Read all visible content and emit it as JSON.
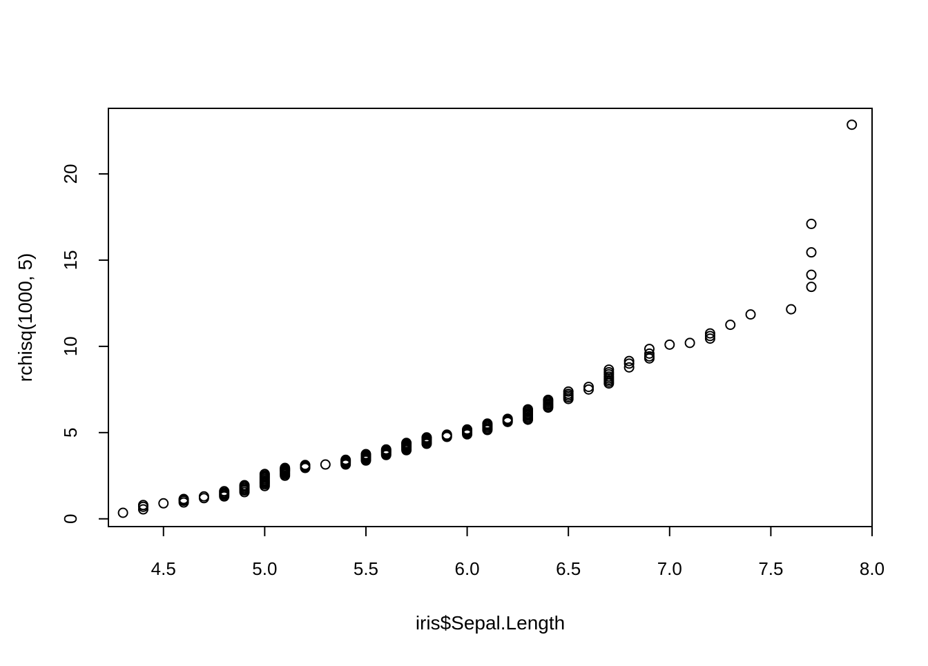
{
  "chart_data": {
    "type": "scatter",
    "title": "",
    "xlabel": "iris$Sepal.Length",
    "ylabel": "rchisq(1000, 5)",
    "xlim": [
      4.228,
      8.0
    ],
    "ylim": [
      -0.45,
      23.8
    ],
    "x_ticks": [
      4.5,
      5.0,
      5.5,
      6.0,
      6.5,
      7.0,
      7.5,
      8.0
    ],
    "x_tick_labels": [
      "4.5",
      "5.0",
      "5.5",
      "6.0",
      "6.5",
      "7.0",
      "7.5",
      "8.0"
    ],
    "y_ticks": [
      0,
      5,
      10,
      15,
      20
    ],
    "y_tick_labels": [
      "0",
      "5",
      "10",
      "15",
      "20"
    ],
    "grid": false,
    "legend": "none",
    "marker": "open-circle",
    "colors": {
      "points": "#000000",
      "axes": "#000000",
      "background": "#ffffff"
    },
    "series": [
      {
        "x": [
          4.3,
          4.4,
          4.4,
          4.4,
          4.5,
          4.6,
          4.6,
          4.6,
          4.6,
          4.7,
          4.7,
          4.8,
          4.8,
          4.8,
          4.8,
          4.8,
          4.9,
          4.9,
          4.9,
          4.9,
          4.9,
          4.9,
          5.0,
          5.0,
          5.0,
          5.0,
          5.0,
          5.0,
          5.0,
          5.0,
          5.0,
          5.0,
          5.1,
          5.1,
          5.1,
          5.1,
          5.1,
          5.1,
          5.1,
          5.1,
          5.1,
          5.2,
          5.2,
          5.2,
          5.2,
          5.3,
          5.4,
          5.4,
          5.4,
          5.4,
          5.4,
          5.4,
          5.5,
          5.5,
          5.5,
          5.5,
          5.5,
          5.5,
          5.5,
          5.6,
          5.6,
          5.6,
          5.6,
          5.6,
          5.6,
          5.7,
          5.7,
          5.7,
          5.7,
          5.7,
          5.7,
          5.7,
          5.7,
          5.8,
          5.8,
          5.8,
          5.8,
          5.8,
          5.8,
          5.8,
          5.9,
          5.9,
          5.9,
          6.0,
          6.0,
          6.0,
          6.0,
          6.0,
          6.0,
          6.1,
          6.1,
          6.1,
          6.1,
          6.1,
          6.1,
          6.2,
          6.2,
          6.2,
          6.2,
          6.3,
          6.3,
          6.3,
          6.3,
          6.3,
          6.3,
          6.3,
          6.3,
          6.3,
          6.4,
          6.4,
          6.4,
          6.4,
          6.4,
          6.4,
          6.4,
          6.5,
          6.5,
          6.5,
          6.5,
          6.5,
          6.6,
          6.6,
          6.7,
          6.7,
          6.7,
          6.7,
          6.7,
          6.7,
          6.7,
          6.7,
          6.8,
          6.8,
          6.8,
          6.9,
          6.9,
          6.9,
          6.9,
          7.0,
          7.1,
          7.2,
          7.2,
          7.2,
          7.3,
          7.4,
          7.6,
          7.7,
          7.7,
          7.7,
          7.7,
          7.9
        ],
        "y": [
          0.35,
          0.55,
          0.7,
          0.8,
          0.9,
          0.95,
          1.05,
          1.1,
          1.15,
          1.2,
          1.3,
          1.3,
          1.38,
          1.45,
          1.52,
          1.6,
          1.55,
          1.65,
          1.72,
          1.8,
          1.88,
          1.95,
          1.9,
          2.0,
          2.08,
          2.15,
          2.22,
          2.3,
          2.38,
          2.45,
          2.52,
          2.6,
          2.5,
          2.58,
          2.65,
          2.72,
          2.78,
          2.82,
          2.86,
          2.9,
          2.95,
          2.95,
          3.02,
          3.08,
          3.12,
          3.15,
          3.15,
          3.22,
          3.28,
          3.33,
          3.38,
          3.42,
          3.38,
          3.45,
          3.52,
          3.58,
          3.64,
          3.7,
          3.75,
          3.7,
          3.77,
          3.84,
          3.9,
          3.96,
          4.02,
          3.98,
          4.05,
          4.12,
          4.18,
          4.24,
          4.3,
          4.36,
          4.4,
          4.35,
          4.42,
          4.49,
          4.56,
          4.62,
          4.68,
          4.72,
          4.75,
          4.82,
          4.88,
          4.9,
          4.96,
          5.02,
          5.08,
          5.13,
          5.18,
          5.15,
          5.22,
          5.3,
          5.38,
          5.45,
          5.52,
          5.62,
          5.68,
          5.74,
          5.8,
          5.75,
          5.82,
          5.9,
          5.98,
          6.05,
          6.12,
          6.2,
          6.28,
          6.35,
          6.45,
          6.52,
          6.6,
          6.67,
          6.75,
          6.83,
          6.9,
          6.95,
          7.05,
          7.15,
          7.25,
          7.38,
          7.5,
          7.65,
          7.85,
          7.95,
          8.05,
          8.15,
          8.25,
          8.38,
          8.5,
          8.65,
          8.78,
          9.0,
          9.15,
          9.3,
          9.42,
          9.58,
          9.85,
          10.1,
          10.2,
          10.45,
          10.6,
          10.75,
          11.25,
          11.85,
          12.15,
          13.45,
          14.15,
          15.45,
          17.1,
          22.85
        ]
      }
    ]
  }
}
